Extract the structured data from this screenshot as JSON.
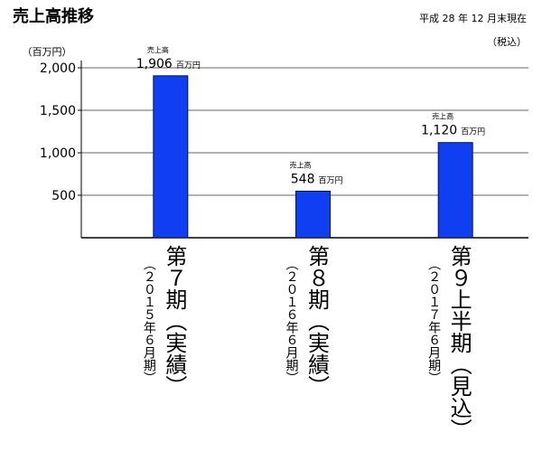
{
  "chart_data": {
    "type": "bar",
    "title": "売上高推移",
    "notes": [
      "平成 28 年 12 月末現在",
      "（税込）"
    ],
    "y_unit": "（百万円）",
    "categories": [
      "第７期（実績）",
      "第８期（実績）",
      "第９上半期（見込）"
    ],
    "category_notes": [
      "（２０１５年６月期）",
      "（２０１６年６月期）",
      "（２０１７年６月期）"
    ],
    "values": [
      1906,
      548,
      1120
    ],
    "value_labels": [
      "1,906",
      "548",
      "1,120"
    ],
    "value_label_unit": "百万円",
    "value_label_caption": "売上高",
    "color": "#0f3ff0",
    "ylim": [
      0,
      2000
    ],
    "yticks": [
      500,
      {
        "value": 1000,
        "label": "1,000"
      },
      {
        "value": 1500,
        "label": "1,500"
      },
      {
        "value": 2000,
        "label": "2,000"
      }
    ],
    "grid": true
  }
}
